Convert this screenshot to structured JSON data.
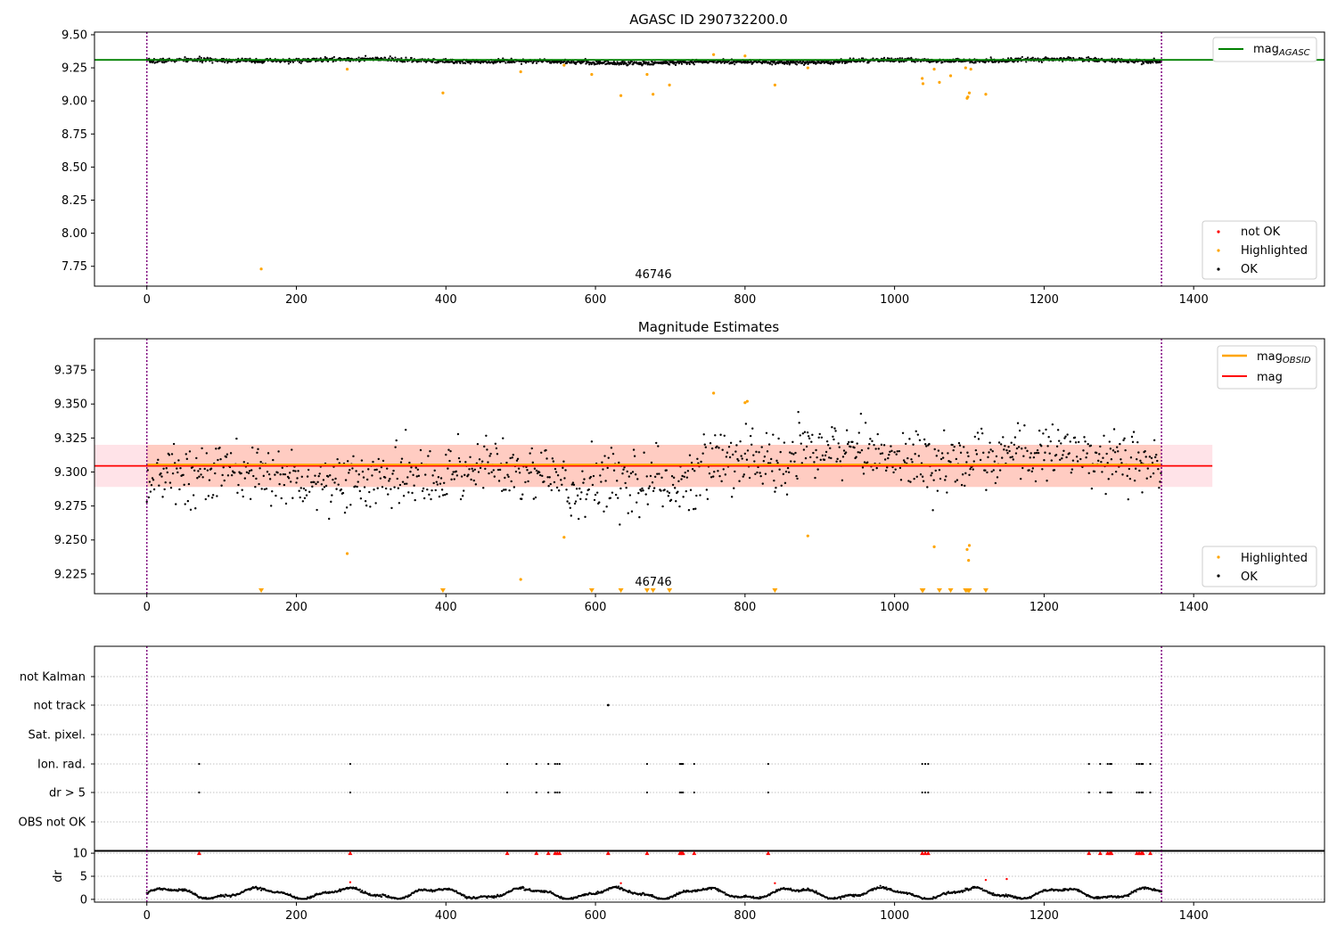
{
  "figure": {
    "colors": {
      "ok": "#000000",
      "highlighted": "#ffa500",
      "not_ok": "#ff0000",
      "agasc_line": "#008000",
      "mag_line": "#ff0000",
      "mag_obsid_line": "#ffa500",
      "obsid_marker": "#800080",
      "band_fill": "#ffc0cb"
    }
  },
  "chart_data": [
    {
      "id": "top",
      "type": "scatter",
      "title": "AGASC ID 290732200.0",
      "xlim": [
        -70,
        1575
      ],
      "ylim": [
        7.6,
        9.52
      ],
      "xticks": [
        0,
        200,
        400,
        600,
        800,
        1000,
        1200,
        1400
      ],
      "yticks": [
        7.75,
        8.0,
        8.25,
        8.5,
        8.75,
        9.0,
        9.25,
        9.5
      ],
      "ytick_labels": [
        "7.75",
        "8.00",
        "8.25",
        "8.50",
        "8.75",
        "9.00",
        "9.25",
        "9.50"
      ],
      "obsid_lines_x": [
        0,
        1357
      ],
      "obsid_label": "46746",
      "agasc_mag": 9.31,
      "ok_band": {
        "x": [
          0,
          1357
        ],
        "center": 9.3,
        "spread": 0.018
      },
      "highlighted": [
        [
          153,
          7.73
        ],
        [
          268,
          9.24
        ],
        [
          396,
          9.06
        ],
        [
          500,
          9.22
        ],
        [
          558,
          9.27
        ],
        [
          595,
          9.2
        ],
        [
          634,
          9.04
        ],
        [
          669,
          9.2
        ],
        [
          677,
          9.05
        ],
        [
          699,
          9.12
        ],
        [
          758,
          9.35
        ],
        [
          800,
          9.34
        ],
        [
          840,
          9.12
        ],
        [
          884,
          9.25
        ],
        [
          1037,
          9.17
        ],
        [
          1038,
          9.13
        ],
        [
          1053,
          9.24
        ],
        [
          1060,
          9.14
        ],
        [
          1075,
          9.19
        ],
        [
          1095,
          9.25
        ],
        [
          1097,
          9.02
        ],
        [
          1098,
          9.03
        ],
        [
          1100,
          9.06
        ],
        [
          1102,
          9.24
        ],
        [
          1122,
          9.05
        ]
      ],
      "legend_upper": [
        {
          "label": "mag",
          "sub": "AGASC"
        }
      ],
      "legend_lower": [
        {
          "label": "not OK"
        },
        {
          "label": "Highlighted"
        },
        {
          "label": "OK"
        }
      ]
    },
    {
      "id": "mid",
      "type": "scatter",
      "title": "Magnitude Estimates",
      "xlim": [
        -70,
        1575
      ],
      "ylim": [
        9.2105,
        9.398
      ],
      "xticks": [
        0,
        200,
        400,
        600,
        800,
        1000,
        1200,
        1400
      ],
      "yticks": [
        9.225,
        9.25,
        9.275,
        9.3,
        9.325,
        9.35,
        9.375
      ],
      "ytick_labels": [
        "9.225",
        "9.250",
        "9.275",
        "9.300",
        "9.325",
        "9.350",
        "9.375"
      ],
      "obsid_lines_x": [
        0,
        1357
      ],
      "obsid_label": "46746",
      "mag": 9.3045,
      "mag_obsid": 9.3055,
      "band_outer": {
        "x": [
          -70,
          1425
        ],
        "y": [
          9.289,
          9.32
        ]
      },
      "band_inner": {
        "x": [
          0,
          1357
        ],
        "y": [
          9.289,
          9.32
        ]
      },
      "highlighted": [
        [
          268,
          9.24
        ],
        [
          500,
          9.221
        ],
        [
          558,
          9.252
        ],
        [
          758,
          9.358
        ],
        [
          800,
          9.351
        ],
        [
          803,
          9.352
        ],
        [
          884,
          9.253
        ],
        [
          1053,
          9.245
        ],
        [
          1097,
          9.243
        ],
        [
          1099,
          9.235
        ],
        [
          1100,
          9.246
        ]
      ],
      "below_range_x": [
        153,
        396,
        595,
        634,
        669,
        677,
        699,
        840,
        1037,
        1038,
        1060,
        1075,
        1095,
        1097,
        1099,
        1100,
        1122
      ],
      "legend_upper": [
        {
          "label": "mag",
          "sub": "OBSID"
        },
        {
          "label": "mag"
        }
      ],
      "legend_lower": [
        {
          "label": "Highlighted"
        },
        {
          "label": "OK"
        }
      ]
    },
    {
      "id": "flags",
      "type": "scatter",
      "xlim": [
        -70,
        1575
      ],
      "categories": [
        "not Kalman",
        "not track",
        "Sat. pixel.",
        "Ion. rad.",
        "dr > 5",
        "OBS not OK"
      ],
      "obsid_lines_x": [
        0,
        1357
      ],
      "not_track_x": [
        617
      ],
      "ion_rad_x": [
        70,
        272,
        482,
        521,
        537,
        546,
        549,
        552,
        669,
        713,
        715,
        717,
        732,
        831,
        1037,
        1041,
        1045,
        1260,
        1275,
        1285,
        1288,
        1290,
        1324,
        1327,
        1330,
        1332,
        1342
      ],
      "dr_gt5_x": [
        70,
        272,
        482,
        521,
        537,
        546,
        549,
        552,
        669,
        713,
        715,
        717,
        732,
        831,
        1037,
        1041,
        1045,
        1260,
        1275,
        1285,
        1288,
        1290,
        1324,
        1327,
        1330,
        1332,
        1342
      ]
    },
    {
      "id": "dr",
      "type": "scatter",
      "ylabel": "dr",
      "xlim": [
        -70,
        1575
      ],
      "ylim": [
        -0.6,
        10.6
      ],
      "xticks": [
        0,
        200,
        400,
        600,
        800,
        1000,
        1200,
        1400
      ],
      "yticks": [
        0,
        5,
        10
      ],
      "obsid_lines_x": [
        0,
        1357
      ],
      "capped_x": [
        70,
        272,
        482,
        521,
        537,
        546,
        549,
        552,
        617,
        669,
        713,
        715,
        717,
        732,
        831,
        1037,
        1041,
        1045,
        1260,
        1275,
        1285,
        1288,
        1290,
        1324,
        1327,
        1330,
        1332,
        1342
      ],
      "red_points": [
        [
          272,
          3.7
        ],
        [
          634,
          3.5
        ],
        [
          840,
          3.5
        ],
        [
          1122,
          4.2
        ],
        [
          1150,
          4.4
        ]
      ]
    }
  ]
}
